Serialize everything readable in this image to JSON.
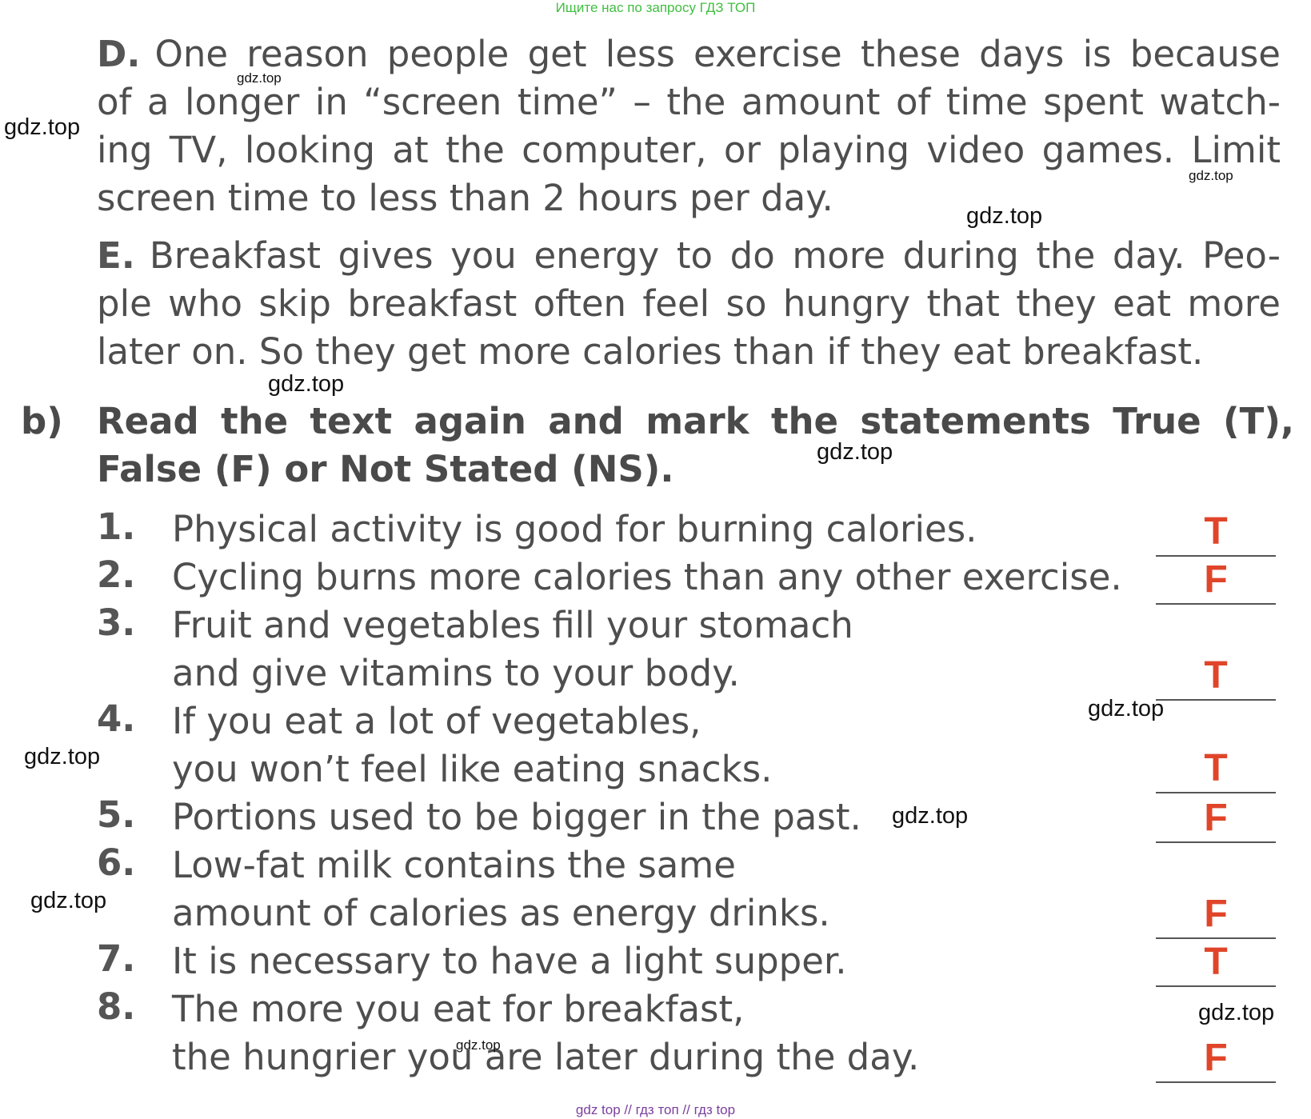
{
  "banner": "Ищите нас по запросу ГДЗ ТОП",
  "paragraph_d": {
    "letter": "D.",
    "lines": [
      "One reason people get less exercise these days is because",
      "of a longer in “screen time” – the amount of time spent watch-",
      "ing TV, looking at the computer, or playing video games. Limit",
      "screen time to less than 2 hours per day."
    ]
  },
  "paragraph_e": {
    "letter": "E.",
    "lines": [
      "Breakfast gives you energy to do more during the day. Peo-",
      "ple who skip breakfast often feel so hungry that they eat more",
      "later on. So they get more calories than if they eat breakfast."
    ]
  },
  "task_b": {
    "marker": "b)",
    "lines": [
      "Read the text again and mark the statements True (T),",
      "False (F) or Not Stated (NS)."
    ]
  },
  "statements": [
    {
      "number": "1.",
      "lines": [
        "Physical activity is good for burning calories."
      ],
      "answer": "T"
    },
    {
      "number": "2.",
      "lines": [
        "Cycling burns more calories than any other exercise."
      ],
      "answer": "F"
    },
    {
      "number": "3.",
      "lines": [
        "Fruit and vegetables fill your stomach",
        "and give vitamins to your body."
      ],
      "answer": "T"
    },
    {
      "number": "4.",
      "lines": [
        "If you eat a lot of vegetables,",
        "you won’t feel like eating snacks."
      ],
      "answer": "T"
    },
    {
      "number": "5.",
      "lines": [
        "Portions used to be bigger in the past."
      ],
      "answer": "F"
    },
    {
      "number": "6.",
      "lines": [
        "Low-fat milk contains the same",
        "amount of calories as energy drinks."
      ],
      "answer": "F"
    },
    {
      "number": "7.",
      "lines": [
        "It is necessary to have a light supper."
      ],
      "answer": "T"
    },
    {
      "number": "8.",
      "lines": [
        "The more you eat for breakfast,",
        "the hungrier you are later during the day."
      ],
      "answer": "F"
    }
  ],
  "watermark": "gdz.top",
  "footer": "gdz top  //  гдз топ  //  гдз top"
}
